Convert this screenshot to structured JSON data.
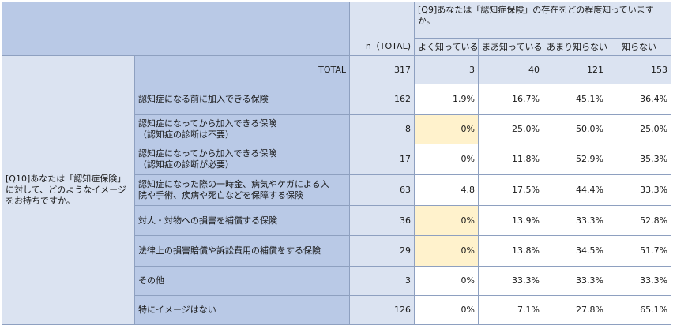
{
  "header": {
    "n_label": "n（TOTAL)",
    "q9": "[Q9]あなたは「認知症保険」の存在をどの程度知っていますか。",
    "columns": [
      "よく知っている",
      "まあ知っている",
      "あまり知らない",
      "知らない"
    ]
  },
  "q10": "[Q10]あなたは「認知症保険」に対して、どのようなイメージをお持ちですか。",
  "total": {
    "label": "TOTAL",
    "n": "317",
    "values": [
      "3",
      "40",
      "121",
      "153"
    ]
  },
  "rows": [
    {
      "line1": "認知症になる前に加入できる保険",
      "line2": "",
      "n": "162",
      "values": [
        "1.9%",
        "16.7%",
        "45.1%",
        "36.4%"
      ],
      "highlight": false
    },
    {
      "line1": "認知症になってから加入できる保険",
      "line2": "（認知症の診断は不要）",
      "n": "8",
      "values": [
        "0%",
        "25.0%",
        "50.0%",
        "25.0%"
      ],
      "highlight": true
    },
    {
      "line1": "認知症になってから加入できる保険",
      "line2": "（認知症の診断が必要）",
      "n": "17",
      "values": [
        "0%",
        "11.8%",
        "52.9%",
        "35.3%"
      ],
      "highlight": false
    },
    {
      "line1": "認知症になった際の一時金、病気やケガによる入",
      "line2": "院や手術、疾病や死亡などを保障する保険",
      "n": "63",
      "values": [
        "4.8",
        "17.5%",
        "44.4%",
        "33.3%"
      ],
      "highlight": false
    },
    {
      "line1": "対人・対物への損害を補償する保険",
      "line2": "",
      "n": "36",
      "values": [
        "0%",
        "13.9%",
        "33.3%",
        "52.8%"
      ],
      "highlight": true
    },
    {
      "line1": "法律上の損害賠償や訴訟費用の補償をする保険",
      "line2": "",
      "n": "29",
      "values": [
        "0%",
        "13.8%",
        "34.5%",
        "51.7%"
      ],
      "highlight": true
    },
    {
      "line1": "その他",
      "line2": "",
      "n": "3",
      "values": [
        "0%",
        "33.3%",
        "33.3%",
        "33.3%"
      ],
      "highlight": false
    },
    {
      "line1": "特にイメージはない",
      "line2": "",
      "n": "126",
      "values": [
        "0%",
        "7.1%",
        "27.8%",
        "65.1%"
      ],
      "highlight": false
    }
  ],
  "colors": {
    "header_blue": "#b9c9e6",
    "light_blue": "#dbe3f1",
    "highlight_yellow": "#fff2cc",
    "border": "#8ea0c0"
  }
}
